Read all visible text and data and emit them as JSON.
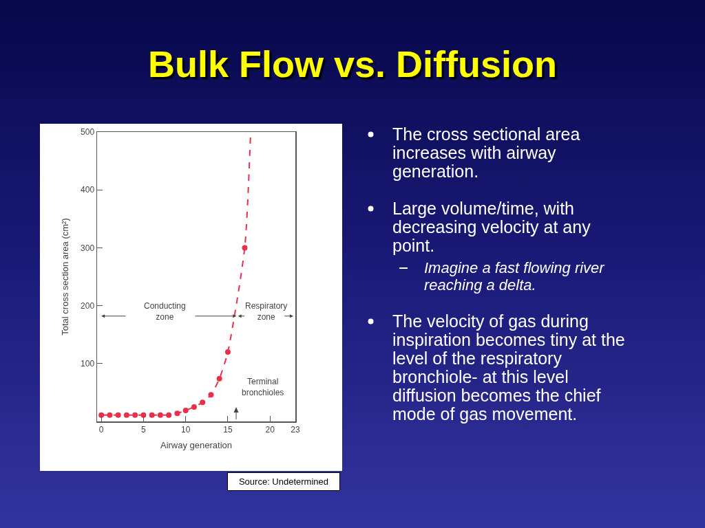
{
  "chart_data": {
    "type": "scatter",
    "title": "Bulk Flow vs. Diffusion",
    "xlabel": "Airway generation",
    "ylabel": "Total cross section area (cm²)",
    "xlim": [
      -0.5,
      23
    ],
    "xticks": [
      0,
      5,
      10,
      15,
      20,
      23
    ],
    "ylim": [
      0,
      500
    ],
    "yticks": [
      100,
      200,
      300,
      400,
      500
    ],
    "grid": false,
    "series": [
      {
        "type": "scatter",
        "color": "#e8304a",
        "marker": "circle",
        "x": [
          0,
          1,
          2,
          3,
          4,
          5,
          6,
          7,
          8,
          9,
          10,
          11,
          12,
          13,
          14,
          15,
          17
        ],
        "values": [
          11,
          11,
          11,
          11,
          11,
          11,
          11,
          11,
          11,
          14,
          19,
          25,
          33,
          46,
          74,
          120,
          300
        ]
      },
      {
        "type": "line",
        "color": "#e8304a",
        "marker": "none",
        "line_style": "dashed",
        "x": [
          0,
          1,
          2,
          3,
          4,
          5,
          6,
          7,
          8,
          9,
          10,
          11,
          12,
          13,
          14,
          15,
          17,
          17.7
        ],
        "values": [
          11,
          11,
          11,
          11,
          11,
          11,
          11,
          11,
          11,
          14,
          19,
          25,
          33,
          46,
          74,
          120,
          300,
          500
        ]
      }
    ],
    "annotations": [
      "Conducting zone",
      "Respiratory zone",
      "Terminal bronchioles",
      "The cross sectional area increases with airway generation.",
      "Large volume/time, with decreasing velocity at any point.",
      "Imagine a fast flowing river reaching a delta.",
      "The velocity of gas during inspiration becomes tiny at the level of the respiratory bronchiole- at this level diffusion becomes the chief mode of gas movement.",
      "Source: Undetermined"
    ]
  }
}
